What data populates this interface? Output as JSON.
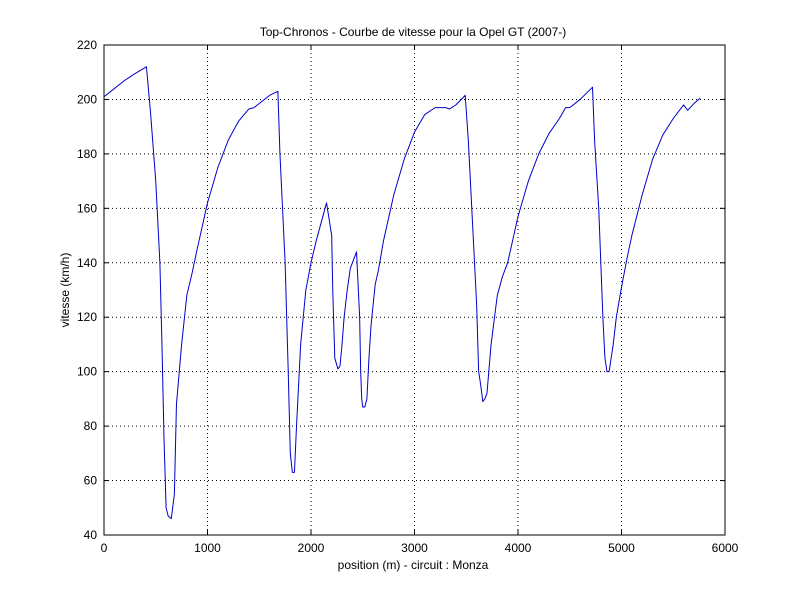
{
  "chart_data": {
    "type": "line",
    "title": "Top-Chronos - Courbe de vitesse pour la Opel GT (2007-)",
    "xlabel": "position (m) - circuit : Monza",
    "ylabel": "vitesse (km/h)",
    "xlim": [
      0,
      6000
    ],
    "ylim": [
      40,
      220
    ],
    "xticks": [
      0,
      1000,
      2000,
      3000,
      4000,
      5000,
      6000
    ],
    "yticks": [
      40,
      60,
      80,
      100,
      120,
      140,
      160,
      180,
      200,
      220
    ],
    "grid": true,
    "line_color": "#0000cc",
    "series": [
      {
        "x": [
          0,
          100,
          200,
          300,
          410,
          450,
          500,
          540,
          560,
          580,
          600,
          620,
          650,
          680,
          700,
          750,
          800,
          850,
          900,
          1000,
          1100,
          1200,
          1300,
          1400,
          1450,
          1500,
          1600,
          1680,
          1700,
          1750,
          1780,
          1800,
          1820,
          1840,
          1860,
          1880,
          1900,
          1950,
          2000,
          2050,
          2100,
          2150,
          2200,
          2210,
          2230,
          2260,
          2280,
          2300,
          2320,
          2350,
          2380,
          2400,
          2440,
          2470,
          2480,
          2490,
          2500,
          2520,
          2540,
          2560,
          2580,
          2620,
          2650,
          2700,
          2800,
          2900,
          3000,
          3100,
          3200,
          3300,
          3340,
          3400,
          3490,
          3520,
          3560,
          3600,
          3620,
          3640,
          3660,
          3680,
          3700,
          3740,
          3800,
          3850,
          3900,
          4000,
          4100,
          4200,
          4300,
          4400,
          4460,
          4500,
          4600,
          4720,
          4740,
          4780,
          4800,
          4820,
          4840,
          4860,
          4880,
          4900,
          4920,
          4950,
          5000,
          5050,
          5100,
          5200,
          5300,
          5400,
          5500,
          5600,
          5640,
          5700,
          5760
        ],
        "y": [
          201,
          204,
          207,
          209.5,
          212,
          195,
          170,
          140,
          110,
          75,
          50,
          47,
          46,
          55,
          88,
          110,
          128,
          136,
          145,
          162,
          175,
          185,
          192,
          196.5,
          197,
          198.5,
          201.5,
          203,
          180,
          140,
          100,
          70,
          63,
          63,
          80,
          95,
          110,
          130,
          140,
          148,
          155,
          162,
          150,
          130,
          105,
          101,
          102,
          110,
          120,
          130,
          138,
          140,
          144,
          120,
          100,
          90,
          87,
          87,
          90,
          105,
          117,
          132,
          137,
          148,
          165,
          178,
          188,
          194.5,
          197,
          197,
          196.5,
          198,
          201.5,
          185,
          155,
          125,
          100,
          95,
          89,
          90,
          92,
          110,
          128,
          135,
          140,
          157,
          170,
          180,
          187.5,
          193,
          197,
          197,
          200,
          204.5,
          185,
          160,
          140,
          120,
          105,
          100,
          100,
          105,
          110,
          120,
          131,
          141,
          150,
          165,
          178,
          187,
          193,
          198,
          196,
          198.5,
          200.5
        ]
      }
    ]
  }
}
